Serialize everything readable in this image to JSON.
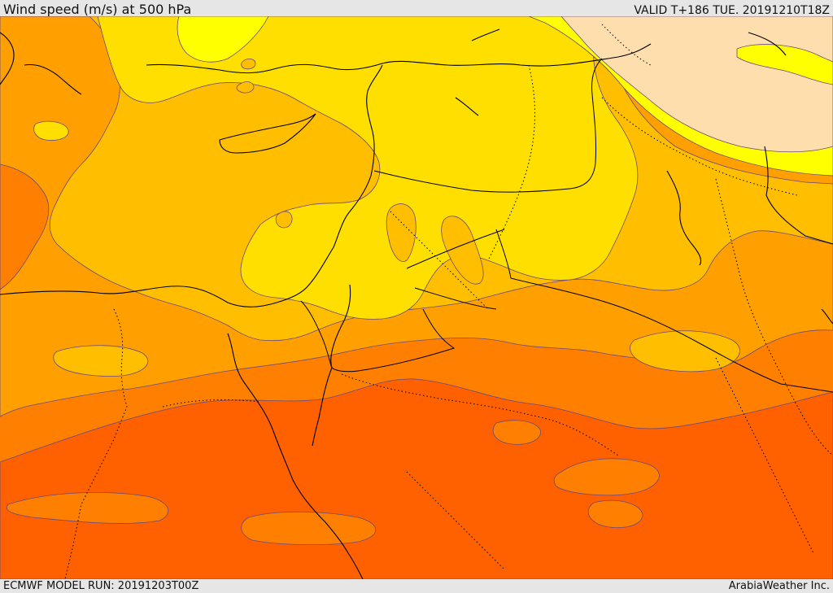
{
  "header": {
    "title": "Wind speed (m/s) at 500 hPa",
    "valid": "VALID T+186 TUE. 20191210T18Z"
  },
  "footer": {
    "model_run": "ECMWF MODEL RUN: 20191203T00Z",
    "credit": "ArabiaWeather Inc."
  },
  "colors": {
    "band_light": "#ffdead",
    "band_yellow_bright": "#ffff00",
    "band_yellow": "#ffdf00",
    "band_gold": "#ffbf00",
    "band_orange_light": "#ffa000",
    "band_orange": "#ff8000",
    "band_orange_dark": "#ff6000",
    "coastline": "#000000",
    "contour": "#6a4a7a"
  }
}
